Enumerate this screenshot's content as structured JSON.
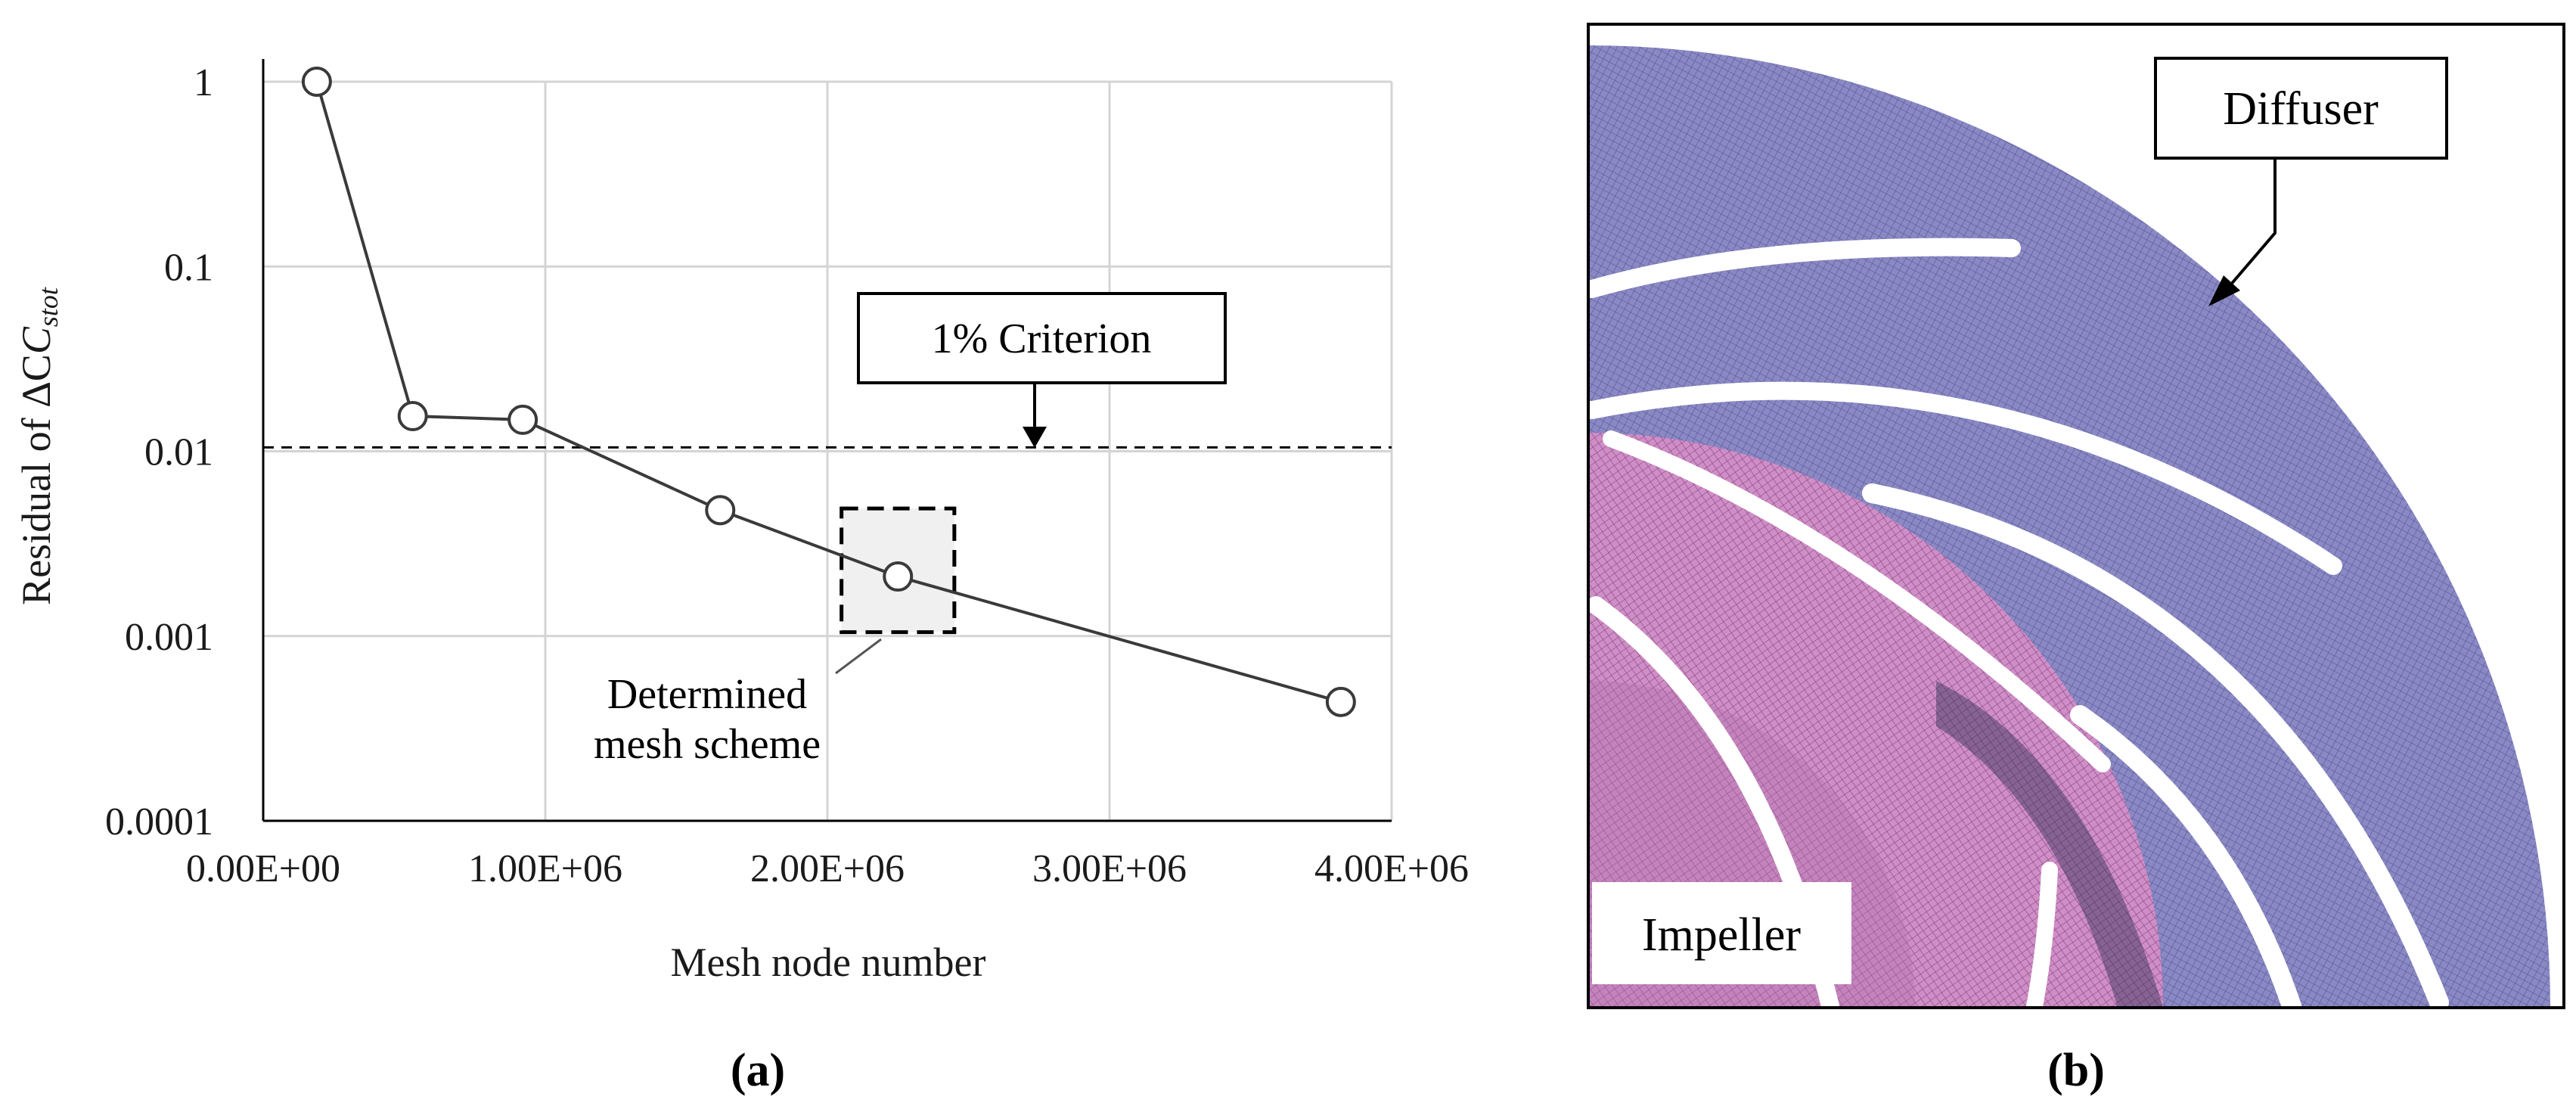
{
  "panel_a": {
    "label": "(a)",
    "criterion_label": "1% Criterion",
    "callout_label_line1": "Determined",
    "callout_label_line2": "mesh scheme"
  },
  "panel_b": {
    "label": "(b)",
    "diffuser_label": "Diffuser",
    "impeller_label": "Impeller"
  },
  "chart_data": {
    "type": "scatter",
    "title": "",
    "xlabel": "Mesh node number",
    "ylabel_prefix": "Residual of ΔC",
    "ylabel_subscript": "stot",
    "xscale": "linear",
    "yscale": "log",
    "xlim": [
      0,
      4000000
    ],
    "ylim": [
      0.0001,
      1
    ],
    "grid": true,
    "x_tick_labels": [
      "0.00E+00",
      "1.00E+06",
      "2.00E+06",
      "3.00E+06",
      "4.00E+06"
    ],
    "y_tick_labels": [
      "1",
      "0.1",
      "0.01",
      "0.001",
      "0.0001"
    ],
    "series": [
      {
        "x": [
          190000,
          530000,
          920000,
          1620000,
          2250000,
          3820000
        ],
        "y": [
          1.0,
          0.0155,
          0.0148,
          0.0048,
          0.0021,
          0.00044
        ]
      }
    ],
    "criterion_y": 0.0105,
    "highlight_box": {
      "x": [
        2050000,
        2450000
      ],
      "y": [
        0.00105,
        0.0049
      ]
    },
    "colors": {
      "line": "#3a3a3a",
      "grid": "#d4d4d4",
      "box_fill": "#f0f0f0",
      "marker_fill": "#ffffff"
    }
  }
}
